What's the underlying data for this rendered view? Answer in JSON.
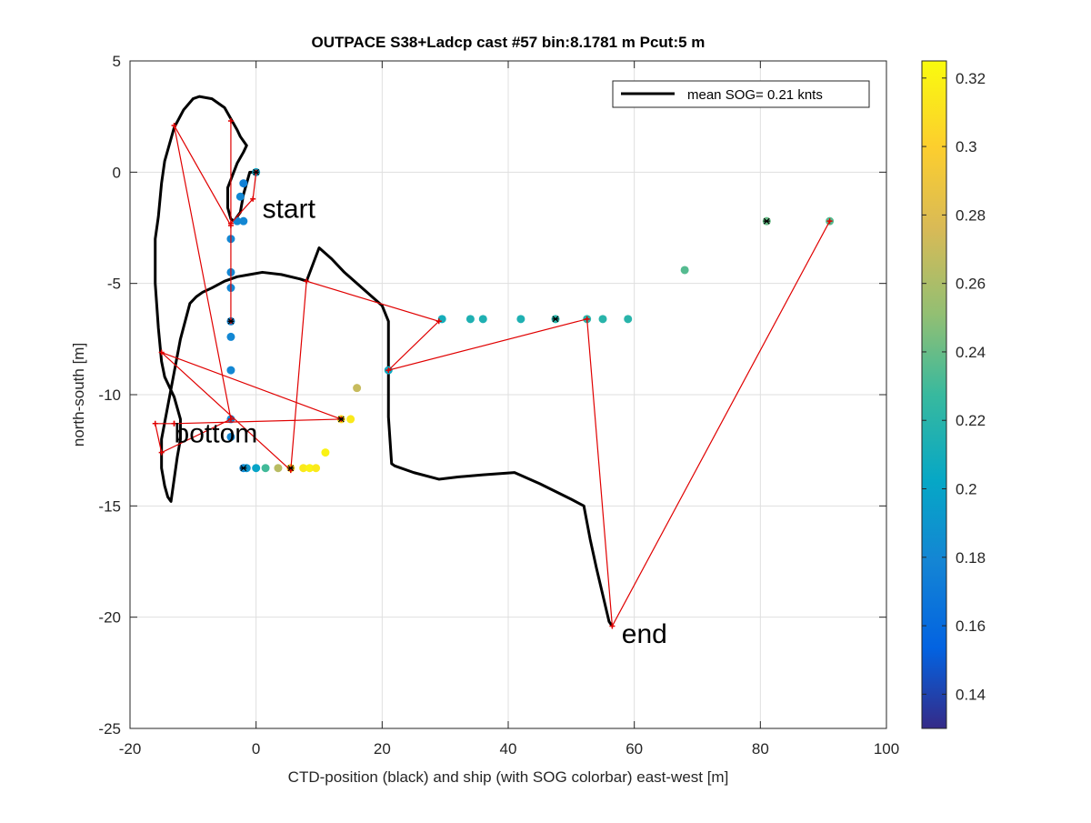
{
  "chart_data": {
    "type": "scatter",
    "title": "OUTPACE S38+Ladcp cast #57 bin:8.1781 m  Pcut:5 m",
    "xlabel": "CTD-position (black) and ship (with SOG colorbar) east-west [m]",
    "ylabel": "north-south [m]",
    "xlim": [
      -20,
      100
    ],
    "ylim": [
      -25,
      5
    ],
    "xticks": [
      -20,
      0,
      20,
      40,
      60,
      80,
      100
    ],
    "yticks": [
      -25,
      -20,
      -15,
      -10,
      -5,
      0,
      5
    ],
    "xtick_labels": [
      "-20",
      "0",
      "20",
      "40",
      "60",
      "80",
      "100"
    ],
    "ytick_labels": [
      "-25",
      "-20",
      "-15",
      "-10",
      "-5",
      "0",
      "5"
    ],
    "grid": true,
    "legend": {
      "label": "mean SOG=  0.21 knts",
      "placement": "top-right"
    },
    "colorbar": {
      "range": [
        0.13,
        0.325
      ],
      "ticks": [
        0.14,
        0.16,
        0.18,
        0.2,
        0.22,
        0.24,
        0.26,
        0.28,
        0.3,
        0.32
      ],
      "tick_labels": [
        "0.14",
        "0.16",
        "0.18",
        "0.2",
        "0.22",
        "0.24",
        "0.26",
        "0.28",
        "0.3",
        "0.32"
      ],
      "colormap": "parula"
    },
    "annotations": [
      {
        "text": "start",
        "x": 1,
        "y": -1.6
      },
      {
        "text": "bottom",
        "x": -13,
        "y": -11.7
      },
      {
        "text": "end",
        "x": 58,
        "y": -20.7
      }
    ],
    "ctd_track": {
      "name": "CTD-position",
      "color": "#000000",
      "x": [
        0,
        -1,
        -2,
        -2.5,
        -3.5,
        -4,
        -4.5,
        -4.5,
        -3,
        -2,
        -1.5,
        -2,
        -2.5,
        -3,
        -5,
        -7,
        -9,
        -10,
        -11.5,
        -13,
        -13.5,
        -14.5,
        -15,
        -15.5,
        -16,
        -16,
        -15.5,
        -15,
        -14.5,
        -13.5,
        -13,
        -12.5,
        -12,
        -12,
        -12.5,
        -13,
        -13.5,
        -14,
        -14.5,
        -15,
        -15,
        -14,
        -13,
        -12,
        -10.5,
        -9.5,
        -8.5,
        -7,
        -5,
        -3,
        -1,
        1,
        4,
        7,
        8,
        10,
        12,
        14,
        16,
        18,
        20,
        21,
        21,
        21,
        21.5,
        22,
        25,
        29,
        32,
        36,
        41,
        45,
        50,
        52,
        53,
        54,
        55,
        56,
        56.5
      ],
      "y": [
        0,
        0,
        -1,
        -1.8,
        -2.2,
        -2.1,
        -1.6,
        -0.7,
        0.4,
        0.9,
        1.2,
        1.4,
        1.6,
        1.9,
        2.9,
        3.3,
        3.4,
        3.3,
        2.8,
        2.0,
        1.5,
        0.5,
        -0.5,
        -2,
        -3,
        -5,
        -7,
        -8.5,
        -9.2,
        -9.8,
        -10.1,
        -10.6,
        -11.1,
        -12,
        -12.8,
        -13.8,
        -14.8,
        -14.6,
        -14.1,
        -13.3,
        -12,
        -10.5,
        -9,
        -7.5,
        -5.9,
        -5.6,
        -5.4,
        -5.2,
        -4.9,
        -4.7,
        -4.6,
        -4.5,
        -4.6,
        -4.8,
        -4.9,
        -3.4,
        -3.9,
        -4.5,
        -5,
        -5.5,
        -6,
        -6.7,
        -8.5,
        -11,
        -13.1,
        -13.2,
        -13.5,
        -13.8,
        -13.7,
        -13.6,
        -13.5,
        -14.0,
        -14.7,
        -15.0,
        -16.5,
        -17.8,
        -19.0,
        -20.2,
        -20.4
      ]
    },
    "red_track": {
      "name": "link",
      "color": "#e00000",
      "x": [
        0,
        -0.5,
        -4,
        -4,
        -4,
        -4,
        -13,
        -4,
        -15,
        -16,
        -13,
        -13,
        13.5,
        -15,
        5.5,
        8,
        29,
        21,
        52.5,
        56.5,
        91
      ],
      "y": [
        0,
        -1.2,
        -2.3,
        2.3,
        -6.7,
        -2.4,
        2.1,
        -11.1,
        -12.6,
        -11.3,
        -11.3,
        -11.3,
        -11.1,
        -8.1,
        -13.4,
        -4.9,
        -6.7,
        -8.9,
        -6.6,
        -20.4,
        -2.2
      ]
    },
    "ship_points": {
      "name": "ship (SOG)",
      "x": [
        0,
        -2,
        -2.5,
        -2,
        -3,
        -4,
        -4,
        -4,
        -4,
        -4,
        -4,
        -4,
        -4,
        -2,
        -1.5,
        0,
        1.5,
        3.5,
        5.5,
        7.5,
        8.5,
        9.5,
        11,
        13.5,
        15,
        16,
        21,
        29.5,
        34,
        36,
        42,
        47.5,
        52.5,
        55,
        59,
        68,
        81,
        91
      ],
      "y": [
        0,
        -0.5,
        -1.1,
        -2.2,
        -2.2,
        -3,
        -4.5,
        -5.2,
        -6.7,
        -7.4,
        -8.9,
        -11.1,
        -11.9,
        -13.3,
        -13.3,
        -13.3,
        -13.3,
        -13.3,
        -13.3,
        -13.3,
        -13.3,
        -13.3,
        -12.6,
        -11.1,
        -11.1,
        -9.7,
        -8.9,
        -6.6,
        -6.6,
        -6.6,
        -6.6,
        -6.6,
        -6.6,
        -6.6,
        -6.6,
        -4.4,
        -2.2,
        -2.2
      ],
      "sog": [
        0.2,
        0.175,
        0.18,
        0.18,
        0.18,
        0.18,
        0.18,
        0.18,
        0.18,
        0.18,
        0.18,
        0.18,
        0.18,
        0.18,
        0.19,
        0.2,
        0.23,
        0.265,
        0.305,
        0.315,
        0.32,
        0.315,
        0.32,
        0.31,
        0.315,
        0.27,
        0.205,
        0.21,
        0.215,
        0.215,
        0.215,
        0.22,
        0.22,
        0.22,
        0.22,
        0.235,
        0.24,
        0.235
      ],
      "black_marked_indices": [
        0,
        8,
        13,
        18,
        23,
        31,
        36
      ]
    }
  }
}
